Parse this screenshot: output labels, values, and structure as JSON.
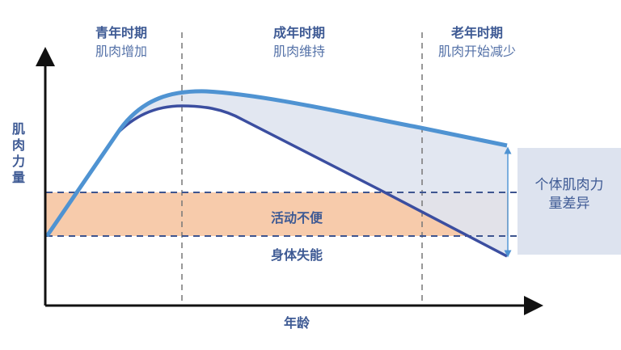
{
  "phases": [
    {
      "title": "青年时期",
      "subtitle": "肌肉增加"
    },
    {
      "title": "成年时期",
      "subtitle": "肌肉维持"
    },
    {
      "title": "老年时期",
      "subtitle": "肌肉开始减少"
    }
  ],
  "y_axis_label": "肌肉力量",
  "x_axis_label": "年龄",
  "band_label": "活动不便",
  "below_label": "身体失能",
  "side_label": "个体肌肉力量差异",
  "colors": {
    "upper_curve": "#4f93d2",
    "lower_curve": "#3b4ea0",
    "band": "#f7cbab",
    "gap_fill": "#dfe4f0",
    "side_box": "#dde3ef",
    "dashed_line": "#3e5590",
    "text": "#3e5a94"
  }
}
